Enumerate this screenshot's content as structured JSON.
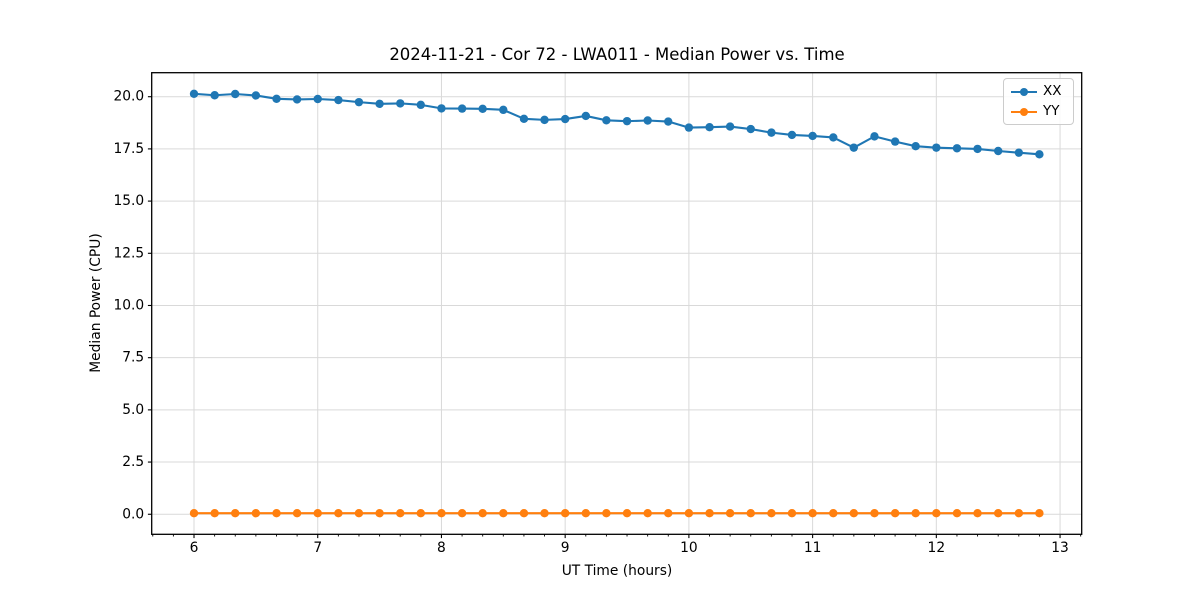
{
  "figure": {
    "title": "2024-11-21 - Cor 72 - LWA011 - Median Power vs. Time"
  },
  "chart_data": {
    "type": "line",
    "title": "2024-11-21 - Cor 72 - LWA011 - Median Power vs. Time",
    "xlabel": "UT Time (hours)",
    "ylabel": "Median Power (CPU)",
    "xlim": [
      5.658,
      13.175
    ],
    "ylim": [
      -0.96,
      21.15
    ],
    "x_ticks": [
      6,
      7,
      8,
      9,
      10,
      11,
      12,
      13
    ],
    "x_tick_labels": [
      "6",
      "7",
      "8",
      "9",
      "10",
      "11",
      "12",
      "13"
    ],
    "x_minor_tick_step_hours": 0.1667,
    "y_ticks": [
      0.0,
      2.5,
      5.0,
      7.5,
      10.0,
      12.5,
      15.0,
      17.5,
      20.0
    ],
    "y_tick_labels": [
      "0.0",
      "2.5",
      "5.0",
      "7.5",
      "10.0",
      "12.5",
      "15.0",
      "17.5",
      "20.0"
    ],
    "grid": true,
    "legend_position": "upper right",
    "colors": {
      "xx": "#1f77b4",
      "yy": "#ff7f0e",
      "grid": "#d9d9d9",
      "spine": "#000000"
    },
    "x": [
      6.0,
      6.167,
      6.333,
      6.5,
      6.667,
      6.833,
      7.0,
      7.167,
      7.333,
      7.5,
      7.667,
      7.833,
      8.0,
      8.167,
      8.333,
      8.5,
      8.667,
      8.833,
      9.0,
      9.167,
      9.333,
      9.5,
      9.667,
      9.833,
      10.0,
      10.167,
      10.333,
      10.5,
      10.667,
      10.833,
      11.0,
      11.167,
      11.333,
      11.5,
      11.667,
      11.833,
      12.0,
      12.167,
      12.333,
      12.5,
      12.667,
      12.833
    ],
    "series": [
      {
        "name": "XX",
        "color": "#1f77b4",
        "values": [
          20.14,
          20.07,
          20.13,
          20.06,
          19.9,
          19.87,
          19.89,
          19.84,
          19.74,
          19.66,
          19.68,
          19.61,
          19.44,
          19.43,
          19.42,
          19.37,
          18.94,
          18.89,
          18.93,
          19.08,
          18.87,
          18.83,
          18.86,
          18.81,
          18.52,
          18.54,
          18.57,
          18.45,
          18.28,
          18.17,
          18.12,
          18.05,
          17.56,
          18.1,
          17.85,
          17.63,
          17.56,
          17.53,
          17.5,
          17.4,
          17.32,
          17.24
        ]
      },
      {
        "name": "YY",
        "color": "#ff7f0e",
        "values": [
          0.05,
          0.05,
          0.05,
          0.05,
          0.05,
          0.05,
          0.05,
          0.05,
          0.05,
          0.05,
          0.05,
          0.05,
          0.05,
          0.05,
          0.05,
          0.05,
          0.05,
          0.05,
          0.05,
          0.05,
          0.05,
          0.05,
          0.05,
          0.05,
          0.05,
          0.05,
          0.05,
          0.05,
          0.05,
          0.05,
          0.05,
          0.05,
          0.05,
          0.05,
          0.05,
          0.05,
          0.05,
          0.05,
          0.05,
          0.05,
          0.05,
          0.05
        ]
      }
    ]
  }
}
